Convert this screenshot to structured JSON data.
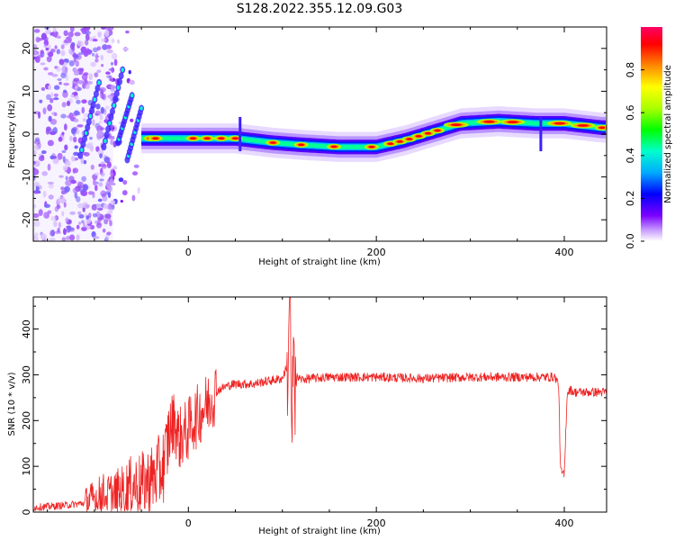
{
  "figure": {
    "title": "S128.2022.355.12.09.G03"
  },
  "chart_data": [
    {
      "type": "heatmap",
      "xlabel": "Height of straight line (km)",
      "ylabel": "Frequency (Hz)",
      "xlim": [
        -165,
        445
      ],
      "ylim": [
        -25,
        25
      ],
      "xticks": [
        0,
        200,
        400
      ],
      "yticks": [
        -20,
        -10,
        0,
        10,
        20
      ],
      "grid": false,
      "colorbar": {
        "label": "Normalized spectral amplitude",
        "range": [
          0,
          1
        ],
        "ticks": [
          0.0,
          0.2,
          0.4,
          0.6,
          0.8
        ],
        "colors": [
          "#ffffff",
          "#c9a0ff",
          "#7a00ff",
          "#0000ff",
          "#00aaff",
          "#00ffcc",
          "#00ff00",
          "#aaff00",
          "#ffff00",
          "#ff8800",
          "#ff0000",
          "#ff0066"
        ]
      },
      "ridge": {
        "x": [
          -50,
          -30,
          0,
          50,
          90,
          120,
          160,
          200,
          230,
          260,
          290,
          330,
          370,
          400,
          440
        ],
        "y": [
          -1.0,
          -1.0,
          -1.0,
          -1.0,
          -2.0,
          -2.5,
          -3.0,
          -3.0,
          -1.5,
          0.5,
          2.5,
          3.0,
          2.5,
          2.5,
          1.5
        ]
      }
    },
    {
      "type": "line",
      "xlabel": "Height of straight line (km)",
      "ylabel": "SNR (10 * v/v)",
      "xlim": [
        -165,
        445
      ],
      "ylim": [
        0,
        470
      ],
      "xticks": [
        0,
        200,
        400
      ],
      "yticks": [
        0,
        100,
        200,
        300,
        400
      ],
      "grid": false,
      "line_color": "#ee2222",
      "series": [
        {
          "x": [
            -165,
            -150,
            -130,
            -110,
            -100,
            -90,
            -80,
            -70,
            -60,
            -50,
            -40,
            -30,
            -25,
            -20,
            -15,
            -10,
            -5,
            0,
            5,
            10,
            15,
            20,
            25,
            30,
            40,
            50,
            60,
            70,
            80,
            90,
            100,
            105,
            108,
            110,
            112,
            115,
            120,
            130,
            150,
            200,
            250,
            300,
            350,
            390,
            394,
            396,
            400,
            403,
            406,
            410,
            420,
            445
          ],
          "y": [
            10,
            12,
            15,
            20,
            30,
            40,
            35,
            45,
            60,
            60,
            70,
            90,
            110,
            180,
            200,
            160,
            170,
            180,
            200,
            210,
            225,
            235,
            250,
            265,
            275,
            280,
            280,
            280,
            285,
            288,
            292,
            320,
            430,
            160,
            300,
            295,
            290,
            292,
            295,
            295,
            292,
            295,
            295,
            295,
            280,
            90,
            80,
            260,
            268,
            262,
            262,
            262
          ]
        }
      ]
    }
  ]
}
